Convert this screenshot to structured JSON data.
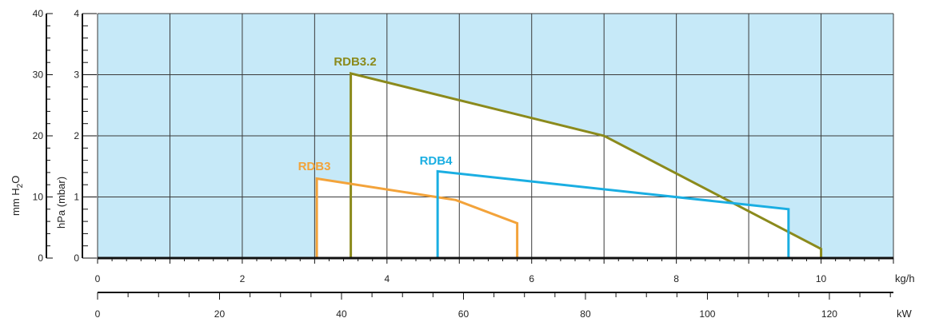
{
  "chart_data": {
    "type": "area",
    "y_left_outer": {
      "label": "mm H",
      "label_sub": "2",
      "label_tail": "O",
      "ticks": [
        0,
        10,
        20,
        30,
        40
      ],
      "range": [
        0,
        40
      ]
    },
    "y_left_inner": {
      "label": "hPa (mbar)",
      "ticks": [
        0,
        1,
        2,
        3,
        4
      ],
      "range": [
        0,
        4
      ]
    },
    "x_primary": {
      "unit": "kg/h",
      "ticks": [
        0,
        2,
        4,
        6,
        8,
        10
      ],
      "range": [
        0,
        11
      ]
    },
    "x_secondary": {
      "unit": "kW",
      "ticks": [
        0,
        20,
        40,
        60,
        80,
        100,
        120
      ],
      "range": [
        0,
        130.5
      ]
    },
    "grid": true,
    "background_color": "#c6e9f8",
    "series": [
      {
        "name": "RDB3.2",
        "color": "#8b8a1c",
        "points": [
          [
            3.5,
            0
          ],
          [
            3.5,
            3.02
          ],
          [
            7.0,
            2.0
          ],
          [
            10.0,
            0.15
          ],
          [
            10.0,
            0
          ]
        ]
      },
      {
        "name": "RDB3",
        "color": "#f3a33a",
        "points": [
          [
            3.03,
            0
          ],
          [
            3.03,
            1.3
          ],
          [
            4.95,
            0.95
          ],
          [
            5.8,
            0.57
          ],
          [
            5.8,
            0
          ]
        ]
      },
      {
        "name": "RDB4",
        "color": "#1aaee2",
        "points": [
          [
            4.7,
            0
          ],
          [
            4.7,
            1.42
          ],
          [
            9.55,
            0.8
          ],
          [
            9.55,
            0
          ]
        ]
      }
    ]
  }
}
